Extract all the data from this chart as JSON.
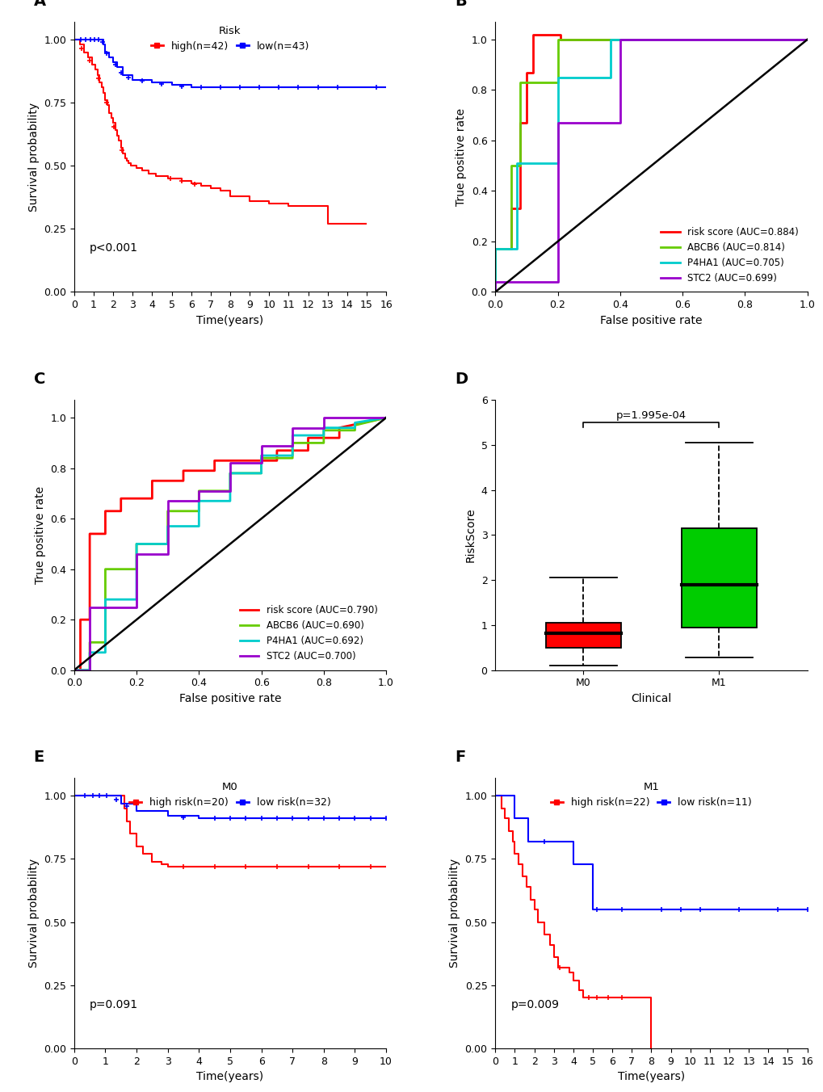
{
  "panel_A": {
    "title": "Risk",
    "high_label": "high(n=42)",
    "low_label": "low(n=43)",
    "high_color": "#FF0000",
    "low_color": "#0000FF",
    "pvalue": "p<0.001",
    "xlabel": "Time(years)",
    "ylabel": "Survival probability",
    "xlim": [
      0,
      16
    ],
    "ylim": [
      0,
      1.07
    ],
    "xticks": [
      0,
      1,
      2,
      3,
      4,
      5,
      6,
      7,
      8,
      9,
      10,
      11,
      12,
      13,
      14,
      15,
      16
    ],
    "yticks": [
      0.0,
      0.25,
      0.5,
      0.75,
      1.0
    ],
    "high_times": [
      0,
      0.3,
      0.5,
      0.7,
      0.9,
      1.1,
      1.2,
      1.3,
      1.4,
      1.5,
      1.6,
      1.7,
      1.8,
      1.9,
      2.0,
      2.1,
      2.2,
      2.3,
      2.4,
      2.5,
      2.6,
      2.7,
      2.8,
      2.9,
      3.0,
      3.2,
      3.5,
      3.8,
      4.0,
      4.2,
      4.5,
      4.8,
      5.0,
      5.2,
      5.5,
      6.0,
      6.5,
      7.0,
      7.5,
      8.0,
      9.0,
      10.0,
      11.0,
      13.0,
      15.0
    ],
    "high_surv": [
      1.0,
      0.98,
      0.95,
      0.93,
      0.9,
      0.88,
      0.86,
      0.83,
      0.81,
      0.79,
      0.76,
      0.74,
      0.71,
      0.69,
      0.67,
      0.64,
      0.62,
      0.6,
      0.57,
      0.55,
      0.53,
      0.52,
      0.51,
      0.5,
      0.5,
      0.49,
      0.48,
      0.47,
      0.47,
      0.46,
      0.46,
      0.45,
      0.45,
      0.45,
      0.44,
      0.43,
      0.42,
      0.41,
      0.4,
      0.38,
      0.36,
      0.35,
      0.34,
      0.27,
      0.27
    ],
    "low_times": [
      0,
      0.3,
      0.5,
      0.7,
      1.0,
      1.1,
      1.2,
      1.3,
      1.4,
      1.5,
      1.6,
      1.8,
      2.0,
      2.2,
      2.5,
      3.0,
      4.0,
      5.0,
      6.0,
      7.0,
      8.0,
      9.0,
      10.0,
      11.0,
      12.0,
      13.0,
      14.0,
      15.0,
      16.0
    ],
    "low_surv": [
      1.0,
      1.0,
      1.0,
      1.0,
      1.0,
      1.0,
      1.0,
      1.0,
      1.0,
      0.98,
      0.95,
      0.93,
      0.91,
      0.89,
      0.86,
      0.84,
      0.83,
      0.82,
      0.81,
      0.81,
      0.81,
      0.81,
      0.81,
      0.81,
      0.81,
      0.81,
      0.81,
      0.81,
      0.81
    ],
    "high_censor": [
      0.4,
      0.8,
      1.25,
      1.65,
      2.05,
      2.45,
      4.95,
      5.5,
      6.2
    ],
    "low_censor": [
      0.35,
      0.6,
      0.85,
      1.05,
      1.25,
      1.45,
      1.65,
      2.1,
      2.4,
      2.8,
      3.5,
      4.5,
      5.5,
      6.5,
      7.5,
      8.5,
      9.5,
      10.5,
      11.5,
      12.5,
      13.5,
      15.5
    ]
  },
  "panel_B": {
    "xlabel": "False positive rate",
    "ylabel": "True positive rate",
    "xlim": [
      0,
      1
    ],
    "ylim": [
      0,
      1.07
    ],
    "xticks": [
      0.0,
      0.2,
      0.4,
      0.6,
      0.8,
      1.0
    ],
    "yticks": [
      0.0,
      0.2,
      0.4,
      0.6,
      0.8,
      1.0
    ],
    "legend": [
      "risk score (AUC=0.884)",
      "ABCB6 (AUC=0.814)",
      "P4HA1 (AUC=0.705)",
      "STC2 (AUC=0.699)"
    ],
    "colors": [
      "#FF0000",
      "#66CC00",
      "#00CCCC",
      "#9900CC"
    ],
    "risk_fpr": [
      0.0,
      0.0,
      0.05,
      0.05,
      0.08,
      0.08,
      0.1,
      0.1,
      0.12,
      0.12,
      0.21,
      0.21,
      1.0
    ],
    "risk_tpr": [
      0.0,
      0.17,
      0.17,
      0.33,
      0.33,
      0.67,
      0.67,
      0.87,
      0.87,
      1.02,
      1.02,
      1.0,
      1.0
    ],
    "abcb6_fpr": [
      0.0,
      0.0,
      0.05,
      0.05,
      0.08,
      0.08,
      0.2,
      0.2,
      0.38,
      0.38,
      1.0
    ],
    "abcb6_tpr": [
      0.0,
      0.17,
      0.17,
      0.5,
      0.5,
      0.83,
      0.83,
      1.0,
      1.0,
      1.0,
      1.0
    ],
    "p4ha1_fpr": [
      0.0,
      0.0,
      0.07,
      0.07,
      0.2,
      0.2,
      0.37,
      0.37,
      0.5,
      0.5,
      1.0
    ],
    "p4ha1_tpr": [
      0.0,
      0.17,
      0.17,
      0.51,
      0.51,
      0.85,
      0.85,
      1.0,
      1.0,
      1.0,
      1.0
    ],
    "stc2_fpr": [
      0.0,
      0.0,
      0.2,
      0.2,
      0.4,
      0.4,
      1.0
    ],
    "stc2_tpr": [
      0.0,
      0.04,
      0.04,
      0.67,
      0.67,
      1.0,
      1.0
    ]
  },
  "panel_C": {
    "xlabel": "False positive rate",
    "ylabel": "True positive rate",
    "xlim": [
      0,
      1
    ],
    "ylim": [
      0,
      1.07
    ],
    "xticks": [
      0.0,
      0.2,
      0.4,
      0.6,
      0.8,
      1.0
    ],
    "yticks": [
      0.0,
      0.2,
      0.4,
      0.6,
      0.8,
      1.0
    ],
    "legend": [
      "risk score (AUC=0.790)",
      "ABCB6 (AUC=0.690)",
      "P4HA1 (AUC=0.692)",
      "STC2 (AUC=0.700)"
    ],
    "colors": [
      "#FF0000",
      "#66CC00",
      "#00CCCC",
      "#9900CC"
    ],
    "risk_fpr": [
      0.0,
      0.02,
      0.02,
      0.05,
      0.05,
      0.1,
      0.1,
      0.15,
      0.15,
      0.25,
      0.25,
      0.35,
      0.35,
      0.45,
      0.45,
      0.55,
      0.55,
      0.65,
      0.65,
      0.75,
      0.75,
      0.85,
      0.85,
      1.0
    ],
    "risk_tpr": [
      0.0,
      0.0,
      0.2,
      0.2,
      0.54,
      0.54,
      0.63,
      0.63,
      0.68,
      0.68,
      0.75,
      0.75,
      0.79,
      0.79,
      0.83,
      0.83,
      0.83,
      0.83,
      0.87,
      0.87,
      0.92,
      0.92,
      0.96,
      1.0
    ],
    "abcb6_fpr": [
      0.0,
      0.05,
      0.05,
      0.1,
      0.1,
      0.2,
      0.2,
      0.3,
      0.3,
      0.4,
      0.4,
      0.5,
      0.5,
      0.6,
      0.6,
      0.7,
      0.7,
      0.8,
      0.8,
      0.9,
      0.9,
      1.0
    ],
    "abcb6_tpr": [
      0.0,
      0.0,
      0.11,
      0.11,
      0.4,
      0.4,
      0.5,
      0.5,
      0.63,
      0.63,
      0.71,
      0.71,
      0.78,
      0.78,
      0.84,
      0.84,
      0.9,
      0.9,
      0.95,
      0.95,
      0.97,
      1.0
    ],
    "p4ha1_fpr": [
      0.0,
      0.05,
      0.05,
      0.1,
      0.1,
      0.2,
      0.2,
      0.3,
      0.3,
      0.4,
      0.4,
      0.5,
      0.5,
      0.6,
      0.6,
      0.7,
      0.7,
      0.8,
      0.8,
      0.9,
      0.9,
      1.0
    ],
    "p4ha1_tpr": [
      0.0,
      0.0,
      0.07,
      0.07,
      0.28,
      0.28,
      0.5,
      0.5,
      0.57,
      0.57,
      0.67,
      0.67,
      0.78,
      0.78,
      0.85,
      0.85,
      0.93,
      0.93,
      0.96,
      0.96,
      0.98,
      1.0
    ],
    "stc2_fpr": [
      0.0,
      0.05,
      0.05,
      0.1,
      0.1,
      0.2,
      0.2,
      0.3,
      0.3,
      0.4,
      0.4,
      0.5,
      0.5,
      0.6,
      0.6,
      0.7,
      0.7,
      0.8,
      0.8,
      0.9,
      0.9,
      1.0
    ],
    "stc2_tpr": [
      0.0,
      0.0,
      0.25,
      0.25,
      0.25,
      0.25,
      0.46,
      0.46,
      0.67,
      0.67,
      0.71,
      0.71,
      0.82,
      0.82,
      0.89,
      0.89,
      0.96,
      0.96,
      1.0,
      1.0,
      1.0,
      1.0
    ]
  },
  "panel_D": {
    "xlabel": "Clinical",
    "ylabel": "RiskScore",
    "ylim": [
      0,
      6
    ],
    "yticks": [
      0,
      1,
      2,
      3,
      4,
      5,
      6
    ],
    "xticks": [
      "M0",
      "M1"
    ],
    "pvalue": "p=1.995e-04",
    "m0_color": "#FF0000",
    "m1_color": "#00CC00",
    "m0_median": 0.82,
    "m0_q1": 0.5,
    "m0_q3": 1.05,
    "m0_whisker_low": 0.1,
    "m0_whisker_high": 2.05,
    "m1_median": 1.9,
    "m1_q1": 0.95,
    "m1_q3": 3.15,
    "m1_whisker_low": 0.28,
    "m1_whisker_high": 5.05
  },
  "panel_E": {
    "title": "M0",
    "high_label": "high risk(n=20)",
    "low_label": "low risk(n=32)",
    "high_color": "#FF0000",
    "low_color": "#0000FF",
    "pvalue": "p=0.091",
    "xlabel": "Time(years)",
    "ylabel": "Survival probability",
    "xlim": [
      0,
      10
    ],
    "ylim": [
      0,
      1.07
    ],
    "xticks": [
      0,
      1,
      2,
      3,
      4,
      5,
      6,
      7,
      8,
      9,
      10
    ],
    "yticks": [
      0.0,
      0.25,
      0.5,
      0.75,
      1.0
    ],
    "high_times": [
      0,
      1.5,
      1.6,
      1.7,
      1.8,
      2.0,
      2.2,
      2.5,
      2.8,
      3.0,
      4.0,
      5.0,
      6.0,
      7.0,
      8.0,
      9.0,
      10.0
    ],
    "high_surv": [
      1.0,
      1.0,
      0.95,
      0.9,
      0.85,
      0.8,
      0.77,
      0.74,
      0.73,
      0.72,
      0.72,
      0.72,
      0.72,
      0.72,
      0.72,
      0.72,
      0.72
    ],
    "low_times": [
      0,
      0.3,
      0.5,
      0.7,
      0.9,
      1.0,
      1.2,
      1.5,
      2.0,
      2.5,
      3.0,
      4.0,
      5.0,
      6.0,
      7.0,
      8.0,
      9.0,
      10.0
    ],
    "low_surv": [
      1.0,
      1.0,
      1.0,
      1.0,
      1.0,
      1.0,
      1.0,
      0.97,
      0.94,
      0.94,
      0.92,
      0.91,
      0.91,
      0.91,
      0.91,
      0.91,
      0.91,
      0.91
    ],
    "high_censor": [
      3.5,
      4.5,
      5.5,
      6.5,
      7.5,
      8.5,
      9.5
    ],
    "low_censor": [
      0.35,
      0.6,
      0.8,
      1.05,
      1.35,
      1.7,
      3.5,
      4.5,
      5.0,
      5.5,
      6.0,
      6.5,
      7.0,
      7.5,
      8.0,
      8.5,
      9.0,
      9.5,
      10.0
    ]
  },
  "panel_F": {
    "title": "M1",
    "high_label": "high risk(n=22)",
    "low_label": "low risk(n=11)",
    "high_color": "#FF0000",
    "low_color": "#0000FF",
    "pvalue": "p=0.009",
    "xlabel": "Time(years)",
    "ylabel": "Survival probability",
    "xlim": [
      0,
      16
    ],
    "ylim": [
      0,
      1.07
    ],
    "xticks": [
      0,
      1,
      2,
      3,
      4,
      5,
      6,
      7,
      8,
      9,
      10,
      11,
      12,
      13,
      14,
      15,
      16
    ],
    "yticks": [
      0.0,
      0.25,
      0.5,
      0.75,
      1.0
    ],
    "high_times": [
      0,
      0.3,
      0.5,
      0.7,
      0.9,
      1.0,
      1.2,
      1.4,
      1.6,
      1.8,
      2.0,
      2.2,
      2.5,
      2.8,
      3.0,
      3.2,
      3.5,
      3.8,
      4.0,
      4.3,
      4.5,
      5.0,
      5.5,
      6.0,
      7.0,
      8.0
    ],
    "high_surv": [
      1.0,
      0.95,
      0.91,
      0.86,
      0.82,
      0.77,
      0.73,
      0.68,
      0.64,
      0.59,
      0.55,
      0.5,
      0.45,
      0.41,
      0.36,
      0.32,
      0.32,
      0.3,
      0.27,
      0.23,
      0.2,
      0.2,
      0.2,
      0.2,
      0.2,
      0.0
    ],
    "low_times": [
      0,
      0.5,
      1.0,
      1.5,
      1.7,
      2.0,
      2.5,
      3.0,
      4.0,
      4.5,
      5.0,
      6.0,
      7.0,
      8.0,
      9.0,
      10.0,
      12.0,
      14.0,
      16.0
    ],
    "low_surv": [
      1.0,
      1.0,
      0.91,
      0.91,
      0.82,
      0.82,
      0.82,
      0.82,
      0.73,
      0.73,
      0.55,
      0.55,
      0.55,
      0.55,
      0.55,
      0.55,
      0.55,
      0.55,
      0.55
    ],
    "high_censor": [
      3.3,
      4.8,
      5.2,
      5.8,
      6.5
    ],
    "low_censor": [
      2.5,
      5.2,
      6.5,
      8.5,
      9.5,
      10.5,
      12.5,
      14.5,
      16.0
    ]
  }
}
